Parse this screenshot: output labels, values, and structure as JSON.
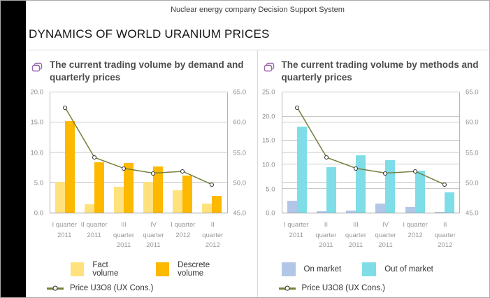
{
  "window": {
    "header": "Nuclear energy company Decision Support System"
  },
  "page_title": "DYNAMICS OF WORLD URANIUM PRICES",
  "colors": {
    "fact_volume": "#FFE27D",
    "descrete_volume": "#FDB800",
    "on_market": "#B2C6E8",
    "out_of_market": "#7FDDE8",
    "price_line": "#75803D",
    "grid": "#C8C8C8"
  },
  "panels": [
    {
      "title": "The current trading volume by demand and quarterly prices",
      "legend": {
        "bars": [
          {
            "label": "Fact volume",
            "color": "#FFE27D"
          },
          {
            "label": "Descrete volume",
            "color": "#FDB800"
          }
        ],
        "line": {
          "label": "Price U3O8 (UX Cons.)",
          "color": "#75803D"
        }
      }
    },
    {
      "title": "The current trading volume by methods and quarterly prices",
      "legend": {
        "bars": [
          {
            "label": "On market",
            "color": "#B2C6E8"
          },
          {
            "label": "Out of market",
            "color": "#7FDDE8"
          }
        ],
        "line": {
          "label": "Price U3O8 (UX Cons.)",
          "color": "#75803D"
        }
      }
    }
  ],
  "chart_data": [
    {
      "type": "bar",
      "title": "The current trading volume by demand and quarterly prices",
      "categories": [
        [
          "I quarter",
          "2011"
        ],
        [
          "II quarter",
          "2011"
        ],
        [
          "III",
          "quarter",
          "2011"
        ],
        [
          "IV",
          "quarter",
          "2011"
        ],
        [
          "I quarter",
          "2012"
        ],
        [
          "II quarter",
          "2012"
        ]
      ],
      "series": [
        {
          "name": "Fact volume",
          "type": "bar",
          "axis": "left",
          "color": "#FFE27D",
          "values": [
            5.2,
            1.5,
            4.4,
            5.2,
            3.8,
            1.6
          ]
        },
        {
          "name": "Descrete volume",
          "type": "bar",
          "axis": "left",
          "color": "#FDB800",
          "values": [
            15.2,
            8.4,
            8.3,
            7.7,
            6.2,
            2.8
          ]
        },
        {
          "name": "Price U3O8 (UX Cons.)",
          "type": "line",
          "axis": "right",
          "color": "#75803D",
          "values": [
            62.5,
            54.2,
            52.4,
            51.6,
            51.9,
            49.7
          ]
        }
      ],
      "left_axis": {
        "min": 0,
        "max": 20,
        "values": [
          0,
          5,
          10,
          15,
          20
        ],
        "labels": [
          "0.0",
          "5.0",
          "10.0",
          "15.0",
          "20.0"
        ]
      },
      "right_axis": {
        "min": 45,
        "max": 65,
        "values": [
          45,
          50,
          55,
          60,
          65
        ],
        "labels": [
          "45.0",
          "50.0",
          "55.0",
          "60.0",
          "65.0"
        ]
      },
      "grid": true,
      "legend_position": "bottom"
    },
    {
      "type": "bar",
      "title": "The current trading volume by methods and quarterly prices",
      "categories": [
        [
          "I quarter",
          "2011"
        ],
        [
          "II",
          "quarter",
          "2011"
        ],
        [
          "III",
          "quarter",
          "2011"
        ],
        [
          "IV",
          "quarter",
          "2011"
        ],
        [
          "I quarter",
          "2012"
        ],
        [
          "II",
          "quarter",
          "2012"
        ]
      ],
      "series": [
        {
          "name": "On market",
          "type": "bar",
          "axis": "left",
          "color": "#B2C6E8",
          "values": [
            2.5,
            0.4,
            0.5,
            2.0,
            1.3,
            0.2
          ]
        },
        {
          "name": "Out of market",
          "type": "bar",
          "axis": "left",
          "color": "#7FDDE8",
          "values": [
            17.9,
            9.5,
            11.9,
            11.0,
            8.7,
            4.3
          ]
        },
        {
          "name": "Price U3O8 (UX Cons.)",
          "type": "line",
          "axis": "right",
          "color": "#75803D",
          "values": [
            62.5,
            54.2,
            52.4,
            51.6,
            51.9,
            49.7
          ]
        }
      ],
      "left_axis": {
        "min": 0,
        "max": 25,
        "values": [
          0,
          5,
          10,
          15,
          20,
          25
        ],
        "labels": [
          "0.0",
          "5.0",
          "10.0",
          "15.0",
          "20.0",
          "25.0"
        ]
      },
      "right_axis": {
        "min": 45,
        "max": 65,
        "values": [
          45,
          50,
          55,
          60,
          65
        ],
        "labels": [
          "45.0",
          "50.0",
          "55.0",
          "60.0",
          "65.0"
        ]
      },
      "grid": true,
      "legend_position": "bottom"
    }
  ]
}
